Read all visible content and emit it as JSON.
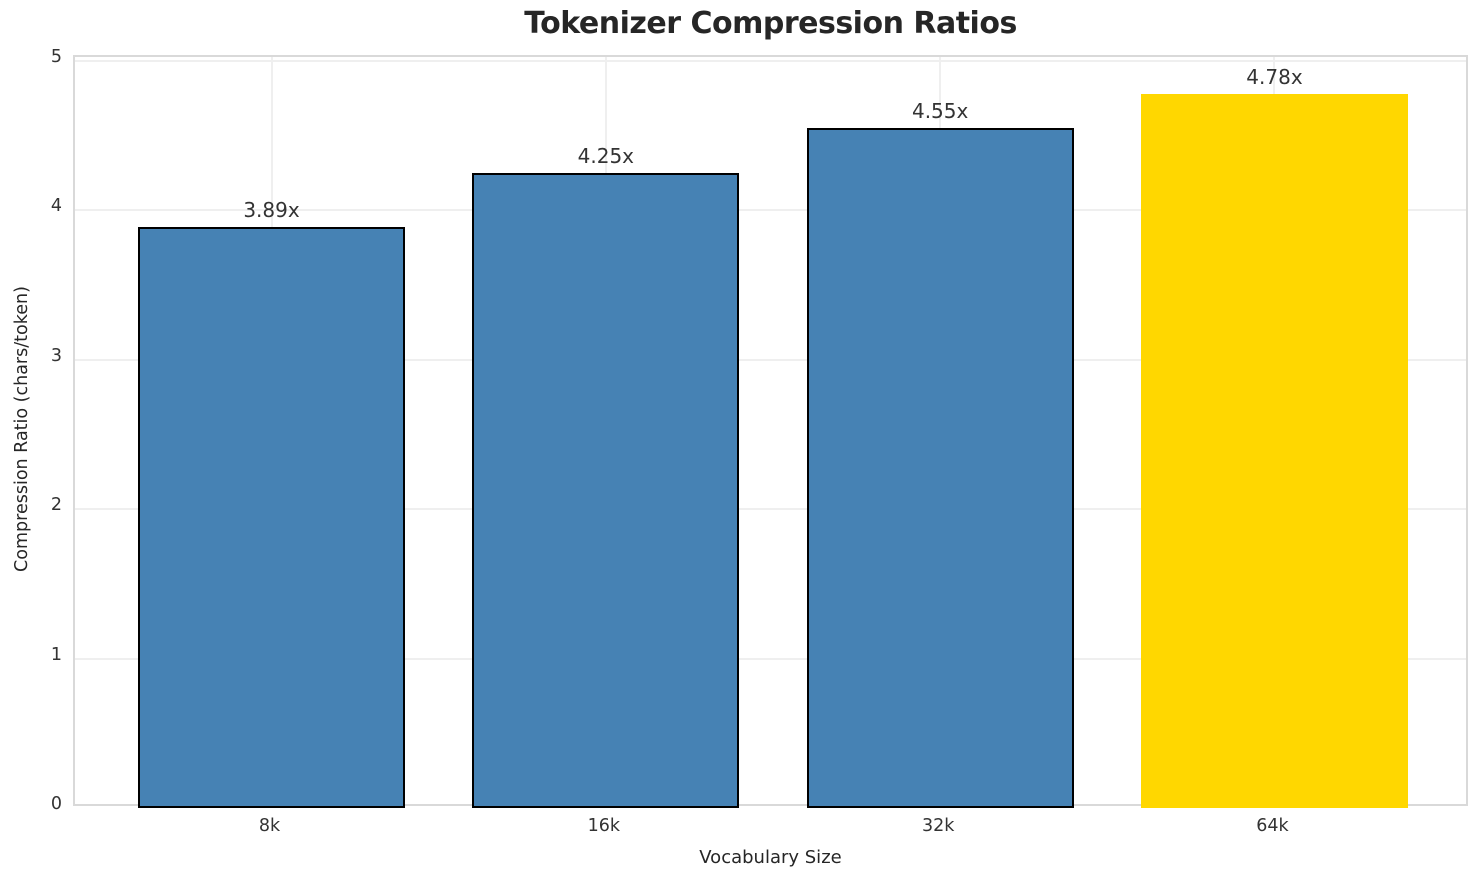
{
  "chart_data": {
    "type": "bar",
    "title": "Tokenizer Compression Ratios",
    "xlabel": "Vocabulary Size",
    "ylabel": "Compression Ratio (chars/token)",
    "categories": [
      "8k",
      "16k",
      "32k",
      "64k"
    ],
    "values": [
      3.89,
      4.25,
      4.55,
      4.78
    ],
    "value_labels": [
      "3.89x",
      "4.25x",
      "4.55x",
      "4.78x"
    ],
    "bar_colors": [
      "#4682B4",
      "#4682B4",
      "#4682B4",
      "#FFD700"
    ],
    "bar_edge_colors": [
      "#000000",
      "#000000",
      "#000000",
      "none"
    ],
    "highlighted_category": "64k",
    "ylim": [
      0,
      5
    ],
    "yticks": [
      0,
      1,
      2,
      3,
      4,
      5
    ],
    "grid": true,
    "grid_color": "#efefef",
    "spine_color": "#d9d9d9",
    "legend": "none"
  }
}
